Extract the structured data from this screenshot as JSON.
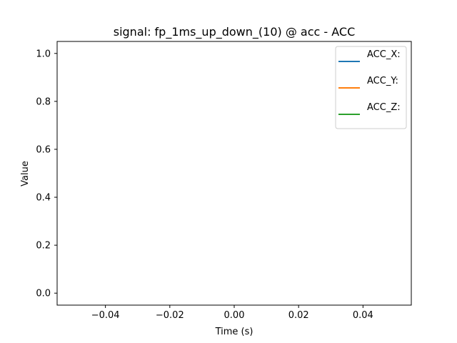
{
  "chart_data": {
    "type": "line",
    "title": "signal: fp_1ms_up_down_(10) @ acc - ACC",
    "xlabel": "Time (s)",
    "ylabel": "Value",
    "xlim": [
      -0.055,
      0.055
    ],
    "ylim": [
      -0.05,
      1.05
    ],
    "x_ticks": [
      -0.04,
      -0.02,
      0.0,
      0.02,
      0.04
    ],
    "x_tick_labels": [
      "−0.04",
      "−0.02",
      "0.00",
      "0.02",
      "0.04"
    ],
    "y_ticks": [
      0.0,
      0.2,
      0.4,
      0.6,
      0.8,
      1.0
    ],
    "y_tick_labels": [
      "0.0",
      "0.2",
      "0.4",
      "0.6",
      "0.8",
      "1.0"
    ],
    "grid": false,
    "legend_position": "top-right",
    "series": [
      {
        "name": "ACC_X:",
        "color": "#1f77b4",
        "x": [],
        "y": []
      },
      {
        "name": "ACC_Y:",
        "color": "#ff7f0e",
        "x": [],
        "y": []
      },
      {
        "name": "ACC_Z:",
        "color": "#2ca02c",
        "x": [],
        "y": []
      }
    ]
  }
}
